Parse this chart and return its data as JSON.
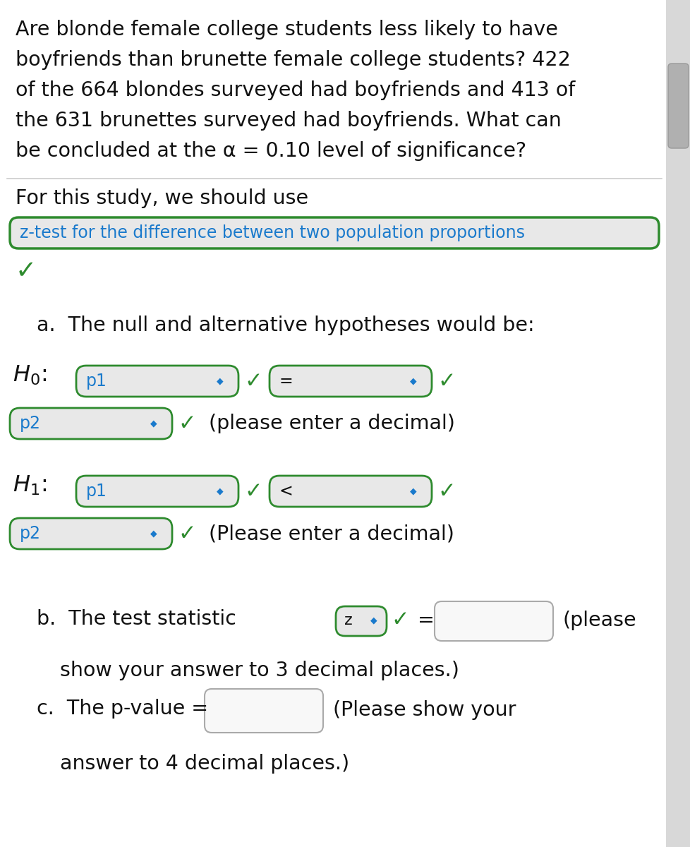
{
  "bg_color": "#ffffff",
  "dropdown_bg": "#e8e8e8",
  "dropdown_border": "#2e8b2e",
  "dropdown_text_color": "#1a7acc",
  "check_color": "#2e8b2e",
  "input_bg": "#f8f8f8",
  "input_border": "#aaaaaa",
  "scrollbar_bg": "#d8d8d8",
  "scrollbar_thumb": "#b0b0b0",
  "text_color": "#111111",
  "title_lines": [
    "Are blonde female college students less likely to have",
    "boyfriends than brunette female college students? 422",
    "of the 664 blondes surveyed had boyfriends and 413 of",
    "the 631 brunettes surveyed had boyfriends. What can",
    "be concluded at the α = 0.10 level of significance?"
  ],
  "for_study_text": "For this study, we should use",
  "dropdown_label": "z-test for the difference between two population proportions",
  "part_a_text": "a.  The null and alternative hypotheses would be:",
  "p1_text": "p1",
  "p2_text": "p2",
  "equal_sign": "=",
  "less_sign": "<",
  "decimal_lower": "(please enter a decimal)",
  "decimal_upper": "(Please enter a decimal)",
  "part_b_line1": "b.  The test statistic",
  "z_label": "z",
  "please_text": "(please",
  "show_3dp": "show your answer to 3 decimal places.)",
  "part_c_line1": "c.  The p-value =",
  "show_4dp_a": "(Please show your",
  "show_4dp_b": "answer to 4 decimal places.)"
}
